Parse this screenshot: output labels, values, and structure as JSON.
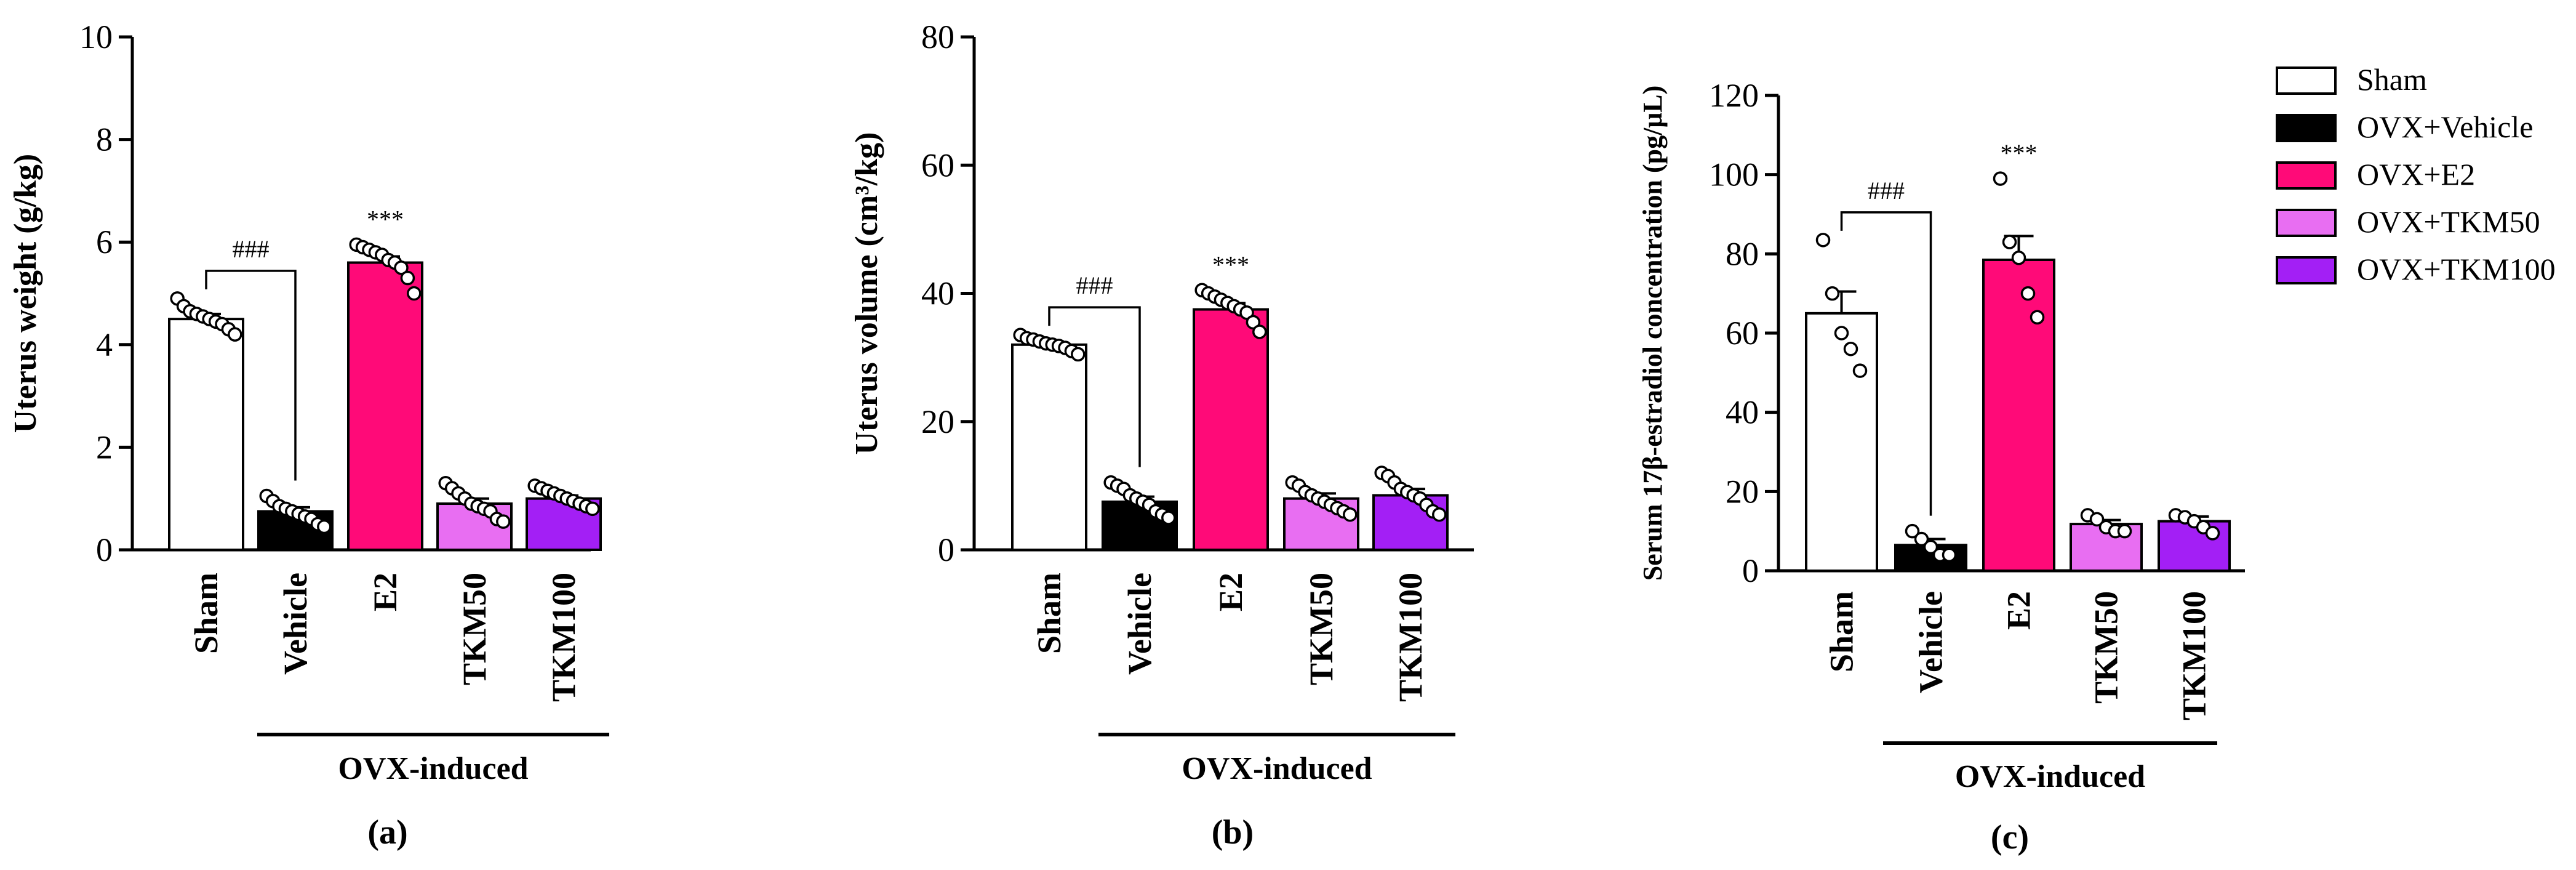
{
  "chart_data": [
    {
      "type": "bar",
      "panel_label": "(a)",
      "ylabel": "Uterus weight (g/kg)",
      "ylim": [
        0,
        10
      ],
      "yticks": [
        0,
        2,
        4,
        6,
        8,
        10
      ],
      "categories": [
        "Sham",
        "Vehicle",
        "E2",
        "TKM50",
        "TKM100"
      ],
      "group_label": "OVX-induced",
      "values": [
        4.5,
        0.75,
        5.6,
        0.9,
        1.0
      ],
      "errors": [
        0.1,
        0.08,
        0.12,
        0.1,
        0.06
      ],
      "points": [
        [
          4.9,
          4.75,
          4.65,
          4.6,
          4.55,
          4.5,
          4.45,
          4.4,
          4.3,
          4.2
        ],
        [
          1.05,
          0.95,
          0.85,
          0.8,
          0.75,
          0.7,
          0.65,
          0.6,
          0.5,
          0.45
        ],
        [
          5.95,
          5.9,
          5.85,
          5.8,
          5.75,
          5.65,
          5.6,
          5.5,
          5.3,
          5.0
        ],
        [
          1.3,
          1.2,
          1.1,
          1.0,
          0.9,
          0.85,
          0.8,
          0.75,
          0.6,
          0.55
        ],
        [
          1.25,
          1.2,
          1.15,
          1.1,
          1.05,
          1.0,
          0.95,
          0.9,
          0.85,
          0.8
        ]
      ],
      "comparison": {
        "from": 0,
        "to": 1,
        "label": "###"
      },
      "significance": [
        {
          "index": 2,
          "label": "***"
        }
      ]
    },
    {
      "type": "bar",
      "panel_label": "(b)",
      "ylabel": "Uterus volume (cm³/kg)",
      "ylim": [
        0,
        80
      ],
      "yticks": [
        0,
        20,
        40,
        60,
        80
      ],
      "categories": [
        "Sham",
        "Vehicle",
        "E2",
        "TKM50",
        "TKM100"
      ],
      "group_label": "OVX-induced",
      "values": [
        32,
        7.5,
        37.5,
        8,
        8.5
      ],
      "errors": [
        0.5,
        0.8,
        1.0,
        0.8,
        1.0
      ],
      "points": [
        [
          33.5,
          33,
          32.8,
          32.5,
          32.2,
          32,
          31.8,
          31.5,
          31,
          30.5
        ],
        [
          10.5,
          10,
          9.5,
          8.5,
          8,
          7.5,
          7,
          6,
          5.5,
          5
        ],
        [
          40.5,
          40,
          39.5,
          39,
          38.5,
          38,
          37.5,
          37,
          35.5,
          34
        ],
        [
          10.5,
          10,
          9,
          8.5,
          8,
          7.5,
          7,
          6.5,
          6,
          5.5
        ],
        [
          12,
          11.5,
          10.5,
          9.5,
          9,
          8.5,
          8,
          7,
          6,
          5.5
        ]
      ],
      "comparison": {
        "from": 0,
        "to": 1,
        "label": "###"
      },
      "significance": [
        {
          "index": 2,
          "label": "***"
        }
      ]
    },
    {
      "type": "bar",
      "panel_label": "(c)",
      "ylabel": "Serum 17β-estradiol concentration (pg/μL)",
      "ylim": [
        0,
        120
      ],
      "yticks": [
        0,
        20,
        40,
        60,
        80,
        100,
        120
      ],
      "categories": [
        "Sham",
        "Vehicle",
        "E2",
        "TKM50",
        "TKM100"
      ],
      "group_label": "OVX-induced",
      "values": [
        65,
        6.5,
        78.5,
        11.8,
        12.5
      ],
      "errors": [
        5.5,
        1.5,
        6.0,
        1.0,
        1.2
      ],
      "points": [
        [
          83.5,
          70,
          60,
          56,
          50.5
        ],
        [
          10,
          8,
          6,
          4,
          4
        ],
        [
          99,
          83,
          79,
          70,
          64
        ],
        [
          14,
          13,
          11,
          10,
          10
        ],
        [
          14,
          13.5,
          12.5,
          11,
          9.5
        ]
      ],
      "comparison": {
        "from": 0,
        "to": 1,
        "label": "###"
      },
      "significance": [
        {
          "index": 2,
          "label": "***"
        }
      ]
    }
  ],
  "legend": [
    {
      "label": "Sham",
      "color": "#ffffff"
    },
    {
      "label": "OVX+Vehicle",
      "color": "#000000"
    },
    {
      "label": "OVX+E2",
      "color": "#ff0a78"
    },
    {
      "label": "OVX+TKM50",
      "color": "#e86ef2"
    },
    {
      "label": "OVX+TKM100",
      "color": "#a31ff5"
    }
  ]
}
